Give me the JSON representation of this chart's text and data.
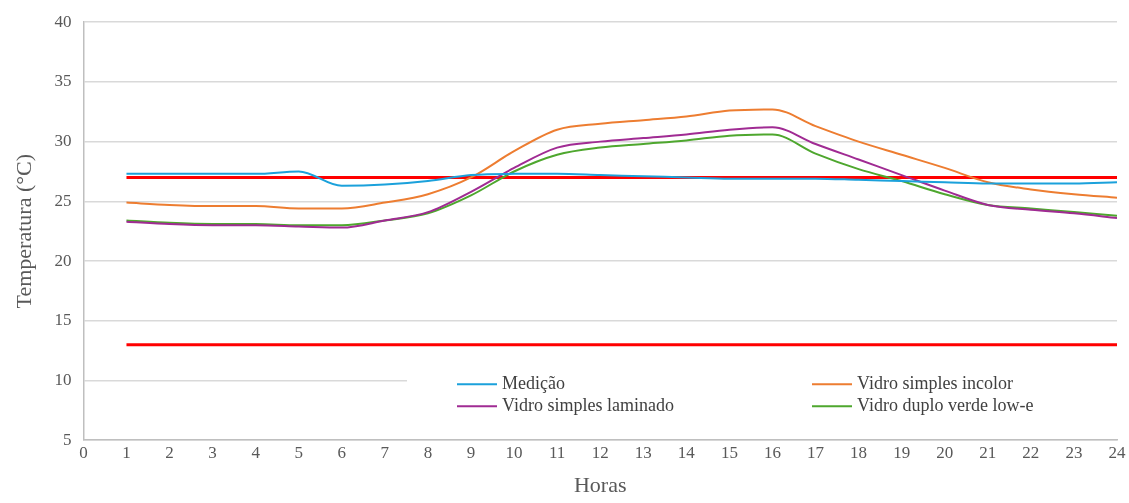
{
  "chart_data": {
    "type": "line",
    "xlabel": "Horas",
    "ylabel": "Temperatura (°C)",
    "x": [
      1,
      2,
      3,
      4,
      5,
      6,
      7,
      8,
      9,
      10,
      11,
      12,
      13,
      14,
      15,
      16,
      17,
      18,
      19,
      20,
      21,
      22,
      23,
      24
    ],
    "xlim": [
      0,
      24
    ],
    "xticks": [
      0,
      1,
      2,
      3,
      4,
      5,
      6,
      7,
      8,
      9,
      10,
      11,
      12,
      13,
      14,
      15,
      16,
      17,
      18,
      19,
      20,
      21,
      22,
      23,
      24
    ],
    "ylim": [
      5,
      40
    ],
    "yticks": [
      5,
      10,
      15,
      20,
      25,
      30,
      35,
      40
    ],
    "grid": "y",
    "legend": "bottom right",
    "marker": "none",
    "line_style": "solid",
    "series": [
      {
        "name": "Medição",
        "color": "#1ba1db",
        "values": [
          27.3,
          27.3,
          27.3,
          27.3,
          27.5,
          26.3,
          26.4,
          26.7,
          27.2,
          27.3,
          27.3,
          27.2,
          27.1,
          27.0,
          26.9,
          26.9,
          26.9,
          26.8,
          26.7,
          26.6,
          26.5,
          26.5,
          26.5,
          26.6
        ]
      },
      {
        "name": "Vidro simples incolor",
        "color": "#ed7d31",
        "values": [
          24.9,
          24.7,
          24.6,
          24.6,
          24.4,
          24.4,
          24.9,
          25.6,
          27.0,
          29.2,
          31.0,
          31.5,
          31.8,
          32.1,
          32.6,
          32.7,
          31.3,
          30.0,
          28.9,
          27.8,
          26.6,
          26.0,
          25.6,
          25.3
        ]
      },
      {
        "name": "Vidro simples laminado",
        "color": "#a02b93",
        "values": [
          23.3,
          23.1,
          23.0,
          23.0,
          22.9,
          22.8,
          23.4,
          24.1,
          25.8,
          27.8,
          29.5,
          30.0,
          30.3,
          30.6,
          31.0,
          31.2,
          29.8,
          28.5,
          27.2,
          25.9,
          24.7,
          24.3,
          24.0,
          23.6
        ]
      },
      {
        "name": "Vidro duplo verde low-e",
        "color": "#4ea72e",
        "values": [
          23.4,
          23.2,
          23.1,
          23.1,
          23.0,
          23.0,
          23.4,
          24.0,
          25.5,
          27.5,
          28.9,
          29.5,
          29.8,
          30.1,
          30.5,
          30.6,
          29.0,
          27.7,
          26.7,
          25.6,
          24.7,
          24.4,
          24.1,
          23.8
        ]
      }
    ],
    "ref_lines": [
      {
        "axis": "y",
        "value": 27,
        "color": "#ff0000"
      },
      {
        "axis": "y",
        "value": 13,
        "color": "#ff0000"
      }
    ]
  }
}
